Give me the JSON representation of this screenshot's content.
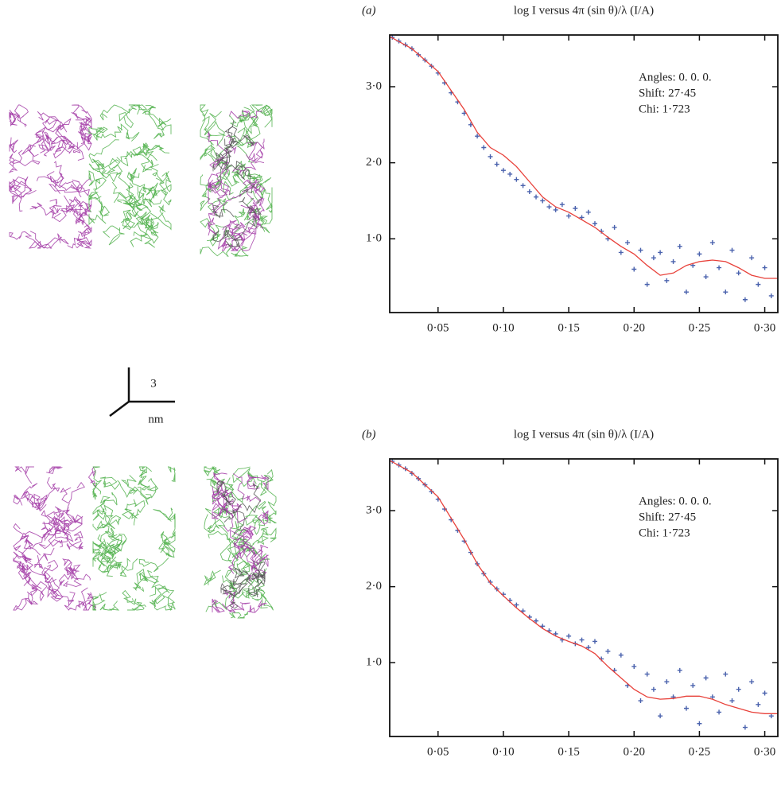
{
  "scale_bar": {
    "top_label": "3",
    "bottom_label": "nm"
  },
  "chart_data": [
    {
      "type": "scatter",
      "panel_label": "(a)",
      "title": "log I versus 4π (sin θ)/λ (I/A)",
      "annotations": [
        "Angles: 0. 0. 0.",
        "Shift: 27·45",
        "Chi: 1·723"
      ],
      "xlim": [
        0.013,
        0.31
      ],
      "ylim": [
        0.03,
        3.68
      ],
      "xticks": [
        {
          "value": 0.05,
          "label": "0·05"
        },
        {
          "value": 0.1,
          "label": "0·10"
        },
        {
          "value": 0.15,
          "label": "0·15"
        },
        {
          "value": 0.2,
          "label": "0·20"
        },
        {
          "value": 0.25,
          "label": "0·25"
        },
        {
          "value": 0.3,
          "label": "0·30"
        }
      ],
      "yticks": [
        {
          "value": 1,
          "label": "1·0"
        },
        {
          "value": 2,
          "label": "2·0"
        },
        {
          "value": 3,
          "label": "3·0"
        }
      ],
      "series": [
        {
          "color": "#4a62ad",
          "x": [
            0.015,
            0.02,
            0.025,
            0.03,
            0.035,
            0.04,
            0.045,
            0.05,
            0.055,
            0.06,
            0.065,
            0.07,
            0.075,
            0.08,
            0.085,
            0.09,
            0.095,
            0.1,
            0.105,
            0.11,
            0.115,
            0.12,
            0.125,
            0.13,
            0.135,
            0.14,
            0.145,
            0.15,
            0.155,
            0.16,
            0.165,
            0.17,
            0.175,
            0.18,
            0.185,
            0.19,
            0.195,
            0.2,
            0.205,
            0.21,
            0.215,
            0.22,
            0.225,
            0.23,
            0.235,
            0.24,
            0.245,
            0.25,
            0.255,
            0.26,
            0.265,
            0.27,
            0.275,
            0.28,
            0.285,
            0.29,
            0.295,
            0.3,
            0.305
          ],
          "values": [
            3.65,
            3.6,
            3.55,
            3.5,
            3.42,
            3.35,
            3.27,
            3.18,
            3.05,
            2.92,
            2.8,
            2.65,
            2.5,
            2.35,
            2.2,
            2.08,
            1.98,
            1.9,
            1.85,
            1.78,
            1.7,
            1.62,
            1.55,
            1.5,
            1.42,
            1.38,
            1.45,
            1.3,
            1.4,
            1.28,
            1.35,
            1.2,
            1.1,
            1.0,
            1.15,
            0.82,
            0.95,
            0.6,
            0.85,
            0.4,
            0.75,
            0.82,
            0.45,
            0.7,
            0.9,
            0.3,
            0.65,
            0.8,
            0.5,
            0.95,
            0.62,
            0.3,
            0.85,
            0.55,
            0.2,
            0.75,
            0.4,
            0.62,
            0.25
          ]
        },
        {
          "type": "line",
          "color": "#e8413a",
          "x": [
            0.013,
            0.03,
            0.05,
            0.07,
            0.08,
            0.09,
            0.1,
            0.11,
            0.12,
            0.13,
            0.14,
            0.15,
            0.16,
            0.17,
            0.18,
            0.19,
            0.2,
            0.21,
            0.22,
            0.23,
            0.24,
            0.25,
            0.26,
            0.27,
            0.28,
            0.29,
            0.3,
            0.31
          ],
          "values": [
            3.66,
            3.5,
            3.2,
            2.7,
            2.4,
            2.2,
            2.1,
            1.95,
            1.75,
            1.55,
            1.42,
            1.35,
            1.25,
            1.15,
            1.02,
            0.9,
            0.8,
            0.65,
            0.52,
            0.55,
            0.65,
            0.7,
            0.72,
            0.7,
            0.62,
            0.52,
            0.48,
            0.48
          ]
        }
      ]
    },
    {
      "type": "scatter",
      "panel_label": "(b)",
      "title": "log I versus 4π (sin θ)/λ (I/A)",
      "annotations": [
        "Angles: 0. 0. 0.",
        "Shift: 27·45",
        "Chi: 1·723"
      ],
      "xlim": [
        0.013,
        0.31
      ],
      "ylim": [
        0.03,
        3.68
      ],
      "xticks": [
        {
          "value": 0.05,
          "label": "0·05"
        },
        {
          "value": 0.1,
          "label": "0·10"
        },
        {
          "value": 0.15,
          "label": "0·15"
        },
        {
          "value": 0.2,
          "label": "0·20"
        },
        {
          "value": 0.25,
          "label": "0·25"
        },
        {
          "value": 0.3,
          "label": "0·30"
        }
      ],
      "yticks": [
        {
          "value": 1,
          "label": "1·0"
        },
        {
          "value": 2,
          "label": "2·0"
        },
        {
          "value": 3,
          "label": "3·0"
        }
      ],
      "series": [
        {
          "color": "#4a62ad",
          "x": [
            0.015,
            0.02,
            0.025,
            0.03,
            0.035,
            0.04,
            0.045,
            0.05,
            0.055,
            0.06,
            0.065,
            0.07,
            0.075,
            0.08,
            0.085,
            0.09,
            0.095,
            0.1,
            0.105,
            0.11,
            0.115,
            0.12,
            0.125,
            0.13,
            0.135,
            0.14,
            0.145,
            0.15,
            0.155,
            0.16,
            0.165,
            0.17,
            0.175,
            0.18,
            0.185,
            0.19,
            0.195,
            0.2,
            0.205,
            0.21,
            0.215,
            0.22,
            0.225,
            0.23,
            0.235,
            0.24,
            0.245,
            0.25,
            0.255,
            0.26,
            0.265,
            0.27,
            0.275,
            0.28,
            0.285,
            0.29,
            0.295,
            0.3,
            0.305
          ],
          "values": [
            3.65,
            3.6,
            3.55,
            3.49,
            3.42,
            3.34,
            3.25,
            3.15,
            3.02,
            2.88,
            2.74,
            2.6,
            2.45,
            2.3,
            2.17,
            2.06,
            1.97,
            1.9,
            1.82,
            1.76,
            1.68,
            1.6,
            1.55,
            1.48,
            1.42,
            1.38,
            1.3,
            1.35,
            1.25,
            1.3,
            1.2,
            1.28,
            1.05,
            1.15,
            0.9,
            1.1,
            0.7,
            0.95,
            0.5,
            0.85,
            0.65,
            0.3,
            0.75,
            0.55,
            0.9,
            0.4,
            0.7,
            0.2,
            0.8,
            0.55,
            0.35,
            0.85,
            0.5,
            0.65,
            0.15,
            0.75,
            0.45,
            0.6,
            0.3
          ]
        },
        {
          "type": "line",
          "color": "#e8413a",
          "x": [
            0.013,
            0.03,
            0.05,
            0.07,
            0.08,
            0.09,
            0.1,
            0.11,
            0.12,
            0.13,
            0.14,
            0.15,
            0.16,
            0.17,
            0.18,
            0.19,
            0.2,
            0.21,
            0.22,
            0.23,
            0.24,
            0.25,
            0.26,
            0.27,
            0.28,
            0.29,
            0.3,
            0.31
          ],
          "values": [
            3.66,
            3.5,
            3.18,
            2.62,
            2.3,
            2.05,
            1.88,
            1.72,
            1.58,
            1.45,
            1.35,
            1.28,
            1.22,
            1.12,
            0.95,
            0.8,
            0.65,
            0.55,
            0.52,
            0.53,
            0.56,
            0.56,
            0.52,
            0.45,
            0.4,
            0.35,
            0.33,
            0.33
          ]
        }
      ]
    }
  ]
}
